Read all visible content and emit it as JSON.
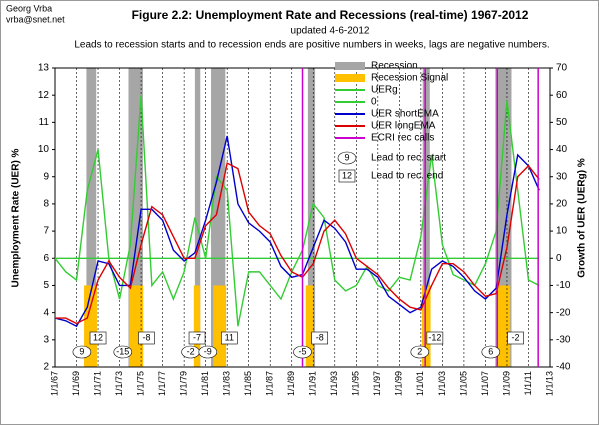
{
  "author": "Georg Vrba",
  "email": "vrba@snet.net",
  "chart_data": {
    "type": "line",
    "title": "Figure 2.2:  Unemployment Rate and Recessions (real-time) 1967-2012",
    "updated": "updated 4-6-2012",
    "subtitle": "Leads to recession starts and to recession ends are positive numbers in weeks, lags are negative numbers.",
    "ylabel": "Unemployment Rate (UER) %",
    "y2label": "Growth of UER (UERg) %",
    "xlim": [
      1967,
      2013
    ],
    "xticks": [
      {
        "value": 1967,
        "label": "1/1/67"
      },
      {
        "value": 1969,
        "label": "1/1/69"
      },
      {
        "value": 1971,
        "label": "1/1/71"
      },
      {
        "value": 1973,
        "label": "1/1/73"
      },
      {
        "value": 1975,
        "label": "1/1/75"
      },
      {
        "value": 1977,
        "label": "1/1/77"
      },
      {
        "value": 1979,
        "label": "1/1/79"
      },
      {
        "value": 1981,
        "label": "1/1/81"
      },
      {
        "value": 1983,
        "label": "1/1/83"
      },
      {
        "value": 1985,
        "label": "1/1/85"
      },
      {
        "value": 1987,
        "label": "1/1/87"
      },
      {
        "value": 1989,
        "label": "1/1/89"
      },
      {
        "value": 1991,
        "label": "1/1/91"
      },
      {
        "value": 1993,
        "label": "1/1/93"
      },
      {
        "value": 1995,
        "label": "1/1/95"
      },
      {
        "value": 1997,
        "label": "1/1/97"
      },
      {
        "value": 1999,
        "label": "1/1/99"
      },
      {
        "value": 2001,
        "label": "1/1/01"
      },
      {
        "value": 2003,
        "label": "1/1/03"
      },
      {
        "value": 2005,
        "label": "1/1/05"
      },
      {
        "value": 2007,
        "label": "1/1/07"
      },
      {
        "value": 2009,
        "label": "1/1/09"
      },
      {
        "value": 2011,
        "label": "1/1/11"
      },
      {
        "value": 2013,
        "label": "1/1/13"
      }
    ],
    "ylim": [
      2,
      13
    ],
    "yticks": [
      2,
      3,
      4,
      5,
      6,
      7,
      8,
      9,
      10,
      11,
      12,
      13
    ],
    "y2lim": [
      -40,
      70
    ],
    "y2ticks": [
      -40,
      -30,
      -20,
      -10,
      0,
      10,
      20,
      30,
      40,
      50,
      60,
      70
    ],
    "grid": true,
    "recession": {
      "name": "Recession",
      "color": "#a6a6a6",
      "periods": [
        [
          1969.92,
          1970.83
        ],
        [
          1973.83,
          1975.17
        ],
        [
          1980.0,
          1980.5
        ],
        [
          1981.5,
          1982.83
        ],
        [
          1990.5,
          1991.17
        ],
        [
          2001.17,
          2001.83
        ],
        [
          2007.92,
          2009.42
        ]
      ]
    },
    "signal": {
      "name": "Recession Signal",
      "color": "#ffc000",
      "level": 5,
      "periods": [
        [
          1969.7,
          1970.9
        ],
        [
          1973.9,
          1975.2
        ],
        [
          1979.9,
          1980.5
        ],
        [
          1981.7,
          1982.9
        ],
        [
          1990.3,
          1991.0
        ],
        [
          2001.1,
          2001.9
        ],
        [
          2008.1,
          2009.3
        ]
      ]
    },
    "ecri": {
      "name": "ECRI rec calls",
      "color": "#cc00cc",
      "x": [
        1990.0,
        2001.4,
        2008.1,
        2011.9
      ]
    },
    "x": [
      1967,
      1968,
      1969,
      1970,
      1971,
      1972,
      1973,
      1974,
      1975,
      1976,
      1977,
      1978,
      1979,
      1980,
      1981,
      1982,
      1983,
      1984,
      1985,
      1986,
      1987,
      1988,
      1989,
      1990,
      1991,
      1992,
      1993,
      1994,
      1995,
      1996,
      1997,
      1998,
      1999,
      2000,
      2001,
      2002,
      2003,
      2004,
      2005,
      2006,
      2007,
      2008,
      2009,
      2010,
      2011,
      2012
    ],
    "series": [
      {
        "name": "UERg",
        "color": "#33cc33",
        "axis": "y2",
        "values": [
          0,
          -5,
          -8,
          25,
          40,
          0,
          -15,
          5,
          60,
          -10,
          -5,
          -15,
          -5,
          15,
          0,
          30,
          25,
          -25,
          -5,
          -5,
          -10,
          -15,
          -5,
          3,
          20,
          15,
          -8,
          -12,
          -10,
          -3,
          -10,
          -12,
          -7,
          -8,
          8,
          38,
          5,
          -6,
          -8,
          -10,
          -2,
          10,
          58,
          25,
          -8,
          -10
        ]
      },
      {
        "name": "0",
        "color": "#33cc33",
        "axis": "y2",
        "values": [
          0,
          0,
          0,
          0,
          0,
          0,
          0,
          0,
          0,
          0,
          0,
          0,
          0,
          0,
          0,
          0,
          0,
          0,
          0,
          0,
          0,
          0,
          0,
          0,
          0,
          0,
          0,
          0,
          0,
          0,
          0,
          0,
          0,
          0,
          0,
          0,
          0,
          0,
          0,
          0,
          0,
          0,
          0,
          0,
          0,
          0
        ]
      },
      {
        "name": "UER shortEMA",
        "color": "#0000cc",
        "values": [
          3.8,
          3.7,
          3.5,
          4.2,
          5.9,
          5.8,
          5.0,
          5.0,
          7.8,
          7.8,
          7.4,
          6.3,
          5.9,
          6.2,
          7.4,
          8.8,
          10.5,
          8.0,
          7.3,
          7.0,
          6.6,
          5.7,
          5.3,
          5.4,
          6.4,
          7.4,
          7.1,
          6.6,
          5.6,
          5.6,
          5.3,
          4.6,
          4.3,
          4.0,
          4.2,
          5.6,
          5.9,
          5.7,
          5.3,
          4.8,
          4.5,
          4.9,
          7.6,
          9.8,
          9.4,
          8.5
        ]
      },
      {
        "name": "UER longEMA",
        "color": "#dd0000",
        "values": [
          3.8,
          3.8,
          3.6,
          3.8,
          5.2,
          5.9,
          5.3,
          4.9,
          6.5,
          7.9,
          7.6,
          6.8,
          6.0,
          6.0,
          7.2,
          7.6,
          9.5,
          9.3,
          7.7,
          7.2,
          6.9,
          6.1,
          5.5,
          5.3,
          5.8,
          7.0,
          7.4,
          6.9,
          6.0,
          5.7,
          5.4,
          4.9,
          4.5,
          4.2,
          4.1,
          5.0,
          5.8,
          5.8,
          5.5,
          5.0,
          4.6,
          4.7,
          6.4,
          9.0,
          9.4,
          8.9
        ]
      }
    ],
    "lead_to_start": {
      "legend_symbol": 9,
      "legend_label": "Lead to rec. start",
      "items": [
        {
          "x": 1969.5,
          "label": 9
        },
        {
          "x": 1973.3,
          "label": -15
        },
        {
          "x": 1979.6,
          "label": -2
        },
        {
          "x": 1981.2,
          "label": -9
        },
        {
          "x": 1990.0,
          "label": -5
        },
        {
          "x": 2000.9,
          "label": 2
        },
        {
          "x": 2007.5,
          "label": 6
        }
      ]
    },
    "lead_to_end": {
      "legend_symbol": 12,
      "legend_label": "Lead to rec. end",
      "items": [
        {
          "x": 1971.0,
          "label": 12
        },
        {
          "x": 1975.5,
          "label": -8
        },
        {
          "x": 1980.2,
          "label": -7
        },
        {
          "x": 1983.2,
          "label": 11
        },
        {
          "x": 1991.6,
          "label": -8
        },
        {
          "x": 2002.3,
          "label": -12
        },
        {
          "x": 2009.8,
          "label": -2
        }
      ]
    }
  }
}
